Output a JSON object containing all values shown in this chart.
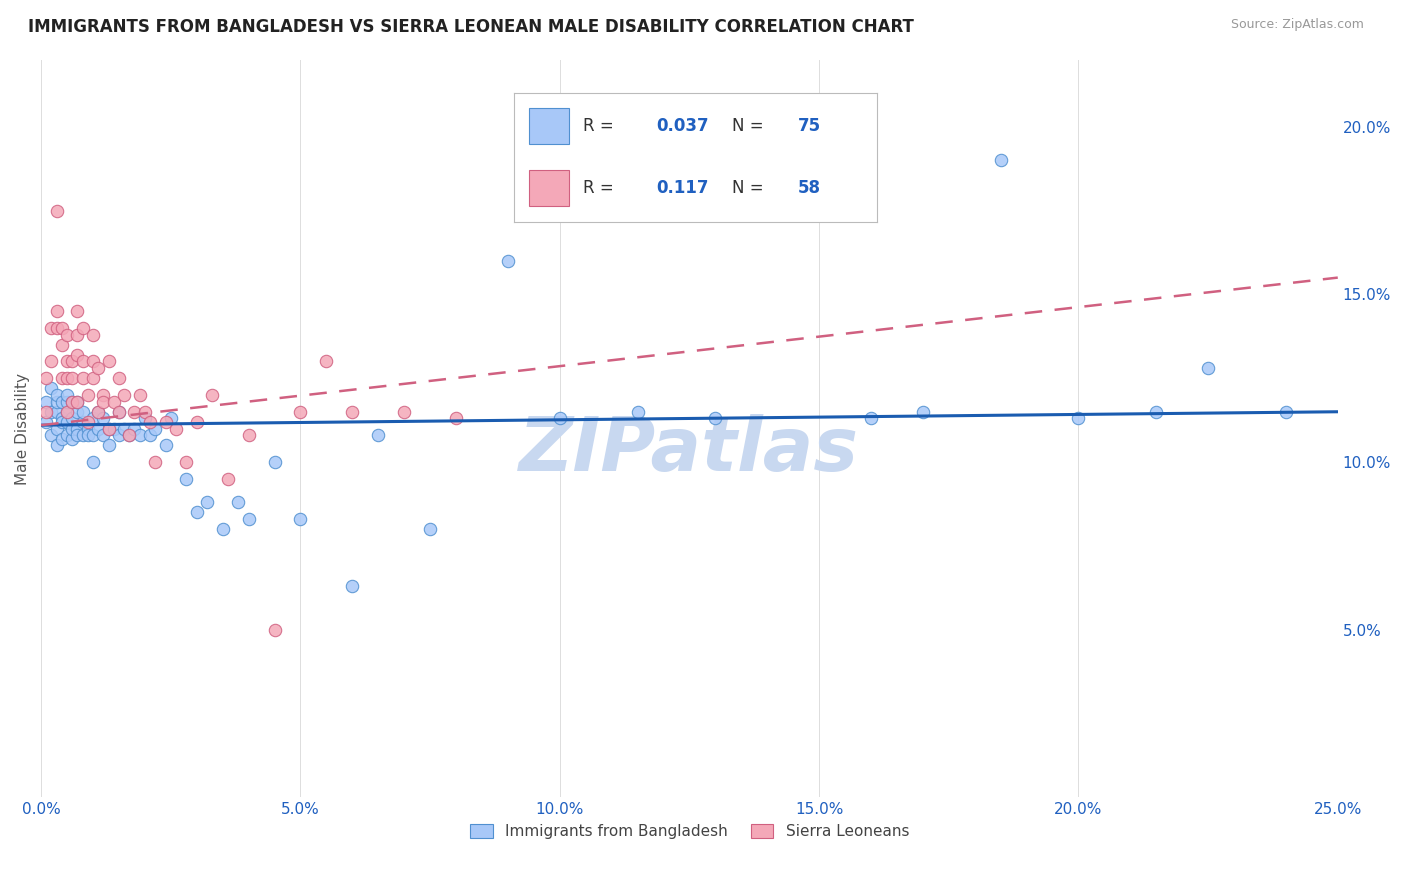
{
  "title": "IMMIGRANTS FROM BANGLADESH VS SIERRA LEONEAN MALE DISABILITY CORRELATION CHART",
  "source": "Source: ZipAtlas.com",
  "ylabel": "Male Disability",
  "x_min": 0.0,
  "x_max": 0.25,
  "y_min": 0.0,
  "y_max": 0.22,
  "x_ticks": [
    0.0,
    0.05,
    0.1,
    0.15,
    0.2,
    0.25
  ],
  "x_tick_labels": [
    "0.0%",
    "5.0%",
    "10.0%",
    "15.0%",
    "20.0%",
    "25.0%"
  ],
  "y_ticks": [
    0.05,
    0.1,
    0.15,
    0.2
  ],
  "y_tick_labels": [
    "5.0%",
    "10.0%",
    "15.0%",
    "20.0%"
  ],
  "bangladesh_color": "#a8c8f8",
  "sierra_leone_color": "#f4a8b8",
  "bangladesh_edge_color": "#5090d0",
  "sierra_leone_edge_color": "#d06080",
  "trend_bangladesh_color": "#1a5cb0",
  "trend_sierra_leone_color": "#d06080",
  "watermark_color": "#c8d8f0",
  "legend_R_bangladesh": "0.037",
  "legend_N_bangladesh": "75",
  "legend_R_sierra": "0.117",
  "legend_N_sierra": "58",
  "legend_color": "#2060c0",
  "legend_label_bangladesh": "Immigrants from Bangladesh",
  "legend_label_sierra": "Sierra Leoneans",
  "bangladesh_x": [
    0.001,
    0.001,
    0.002,
    0.002,
    0.002,
    0.003,
    0.003,
    0.003,
    0.003,
    0.003,
    0.004,
    0.004,
    0.004,
    0.004,
    0.005,
    0.005,
    0.005,
    0.005,
    0.005,
    0.006,
    0.006,
    0.006,
    0.006,
    0.007,
    0.007,
    0.007,
    0.007,
    0.008,
    0.008,
    0.008,
    0.009,
    0.009,
    0.01,
    0.01,
    0.01,
    0.011,
    0.011,
    0.012,
    0.012,
    0.013,
    0.013,
    0.014,
    0.015,
    0.015,
    0.016,
    0.017,
    0.018,
    0.019,
    0.02,
    0.021,
    0.022,
    0.024,
    0.025,
    0.028,
    0.03,
    0.032,
    0.035,
    0.038,
    0.04,
    0.045,
    0.05,
    0.06,
    0.065,
    0.075,
    0.09,
    0.1,
    0.115,
    0.13,
    0.16,
    0.17,
    0.185,
    0.2,
    0.215,
    0.225,
    0.24
  ],
  "bangladesh_y": [
    0.112,
    0.118,
    0.108,
    0.115,
    0.122,
    0.11,
    0.115,
    0.118,
    0.105,
    0.12,
    0.113,
    0.107,
    0.118,
    0.112,
    0.108,
    0.115,
    0.118,
    0.112,
    0.12,
    0.113,
    0.107,
    0.118,
    0.11,
    0.115,
    0.11,
    0.108,
    0.118,
    0.112,
    0.108,
    0.115,
    0.11,
    0.108,
    0.113,
    0.108,
    0.1,
    0.11,
    0.115,
    0.113,
    0.108,
    0.11,
    0.105,
    0.11,
    0.115,
    0.108,
    0.11,
    0.108,
    0.11,
    0.108,
    0.113,
    0.108,
    0.11,
    0.105,
    0.113,
    0.095,
    0.085,
    0.088,
    0.08,
    0.088,
    0.083,
    0.1,
    0.083,
    0.063,
    0.108,
    0.08,
    0.16,
    0.113,
    0.115,
    0.113,
    0.113,
    0.115,
    0.19,
    0.113,
    0.115,
    0.128,
    0.115
  ],
  "sierra_x": [
    0.001,
    0.001,
    0.002,
    0.002,
    0.003,
    0.003,
    0.003,
    0.004,
    0.004,
    0.004,
    0.005,
    0.005,
    0.005,
    0.005,
    0.006,
    0.006,
    0.006,
    0.007,
    0.007,
    0.007,
    0.007,
    0.008,
    0.008,
    0.008,
    0.009,
    0.009,
    0.01,
    0.01,
    0.01,
    0.011,
    0.011,
    0.012,
    0.012,
    0.013,
    0.013,
    0.014,
    0.015,
    0.015,
    0.016,
    0.017,
    0.018,
    0.019,
    0.02,
    0.021,
    0.022,
    0.024,
    0.026,
    0.028,
    0.03,
    0.033,
    0.036,
    0.04,
    0.045,
    0.05,
    0.055,
    0.06,
    0.07,
    0.08
  ],
  "sierra_y": [
    0.115,
    0.125,
    0.13,
    0.14,
    0.14,
    0.145,
    0.175,
    0.135,
    0.125,
    0.14,
    0.115,
    0.125,
    0.13,
    0.138,
    0.13,
    0.125,
    0.118,
    0.138,
    0.132,
    0.118,
    0.145,
    0.14,
    0.125,
    0.13,
    0.12,
    0.112,
    0.13,
    0.125,
    0.138,
    0.128,
    0.115,
    0.12,
    0.118,
    0.13,
    0.11,
    0.118,
    0.125,
    0.115,
    0.12,
    0.108,
    0.115,
    0.12,
    0.115,
    0.112,
    0.1,
    0.112,
    0.11,
    0.1,
    0.112,
    0.12,
    0.095,
    0.108,
    0.05,
    0.115,
    0.13,
    0.115,
    0.115,
    0.113
  ],
  "trend_bangladesh_start_y": 0.111,
  "trend_bangladesh_end_y": 0.115,
  "trend_sierra_start_y": 0.111,
  "trend_sierra_end_y": 0.155
}
